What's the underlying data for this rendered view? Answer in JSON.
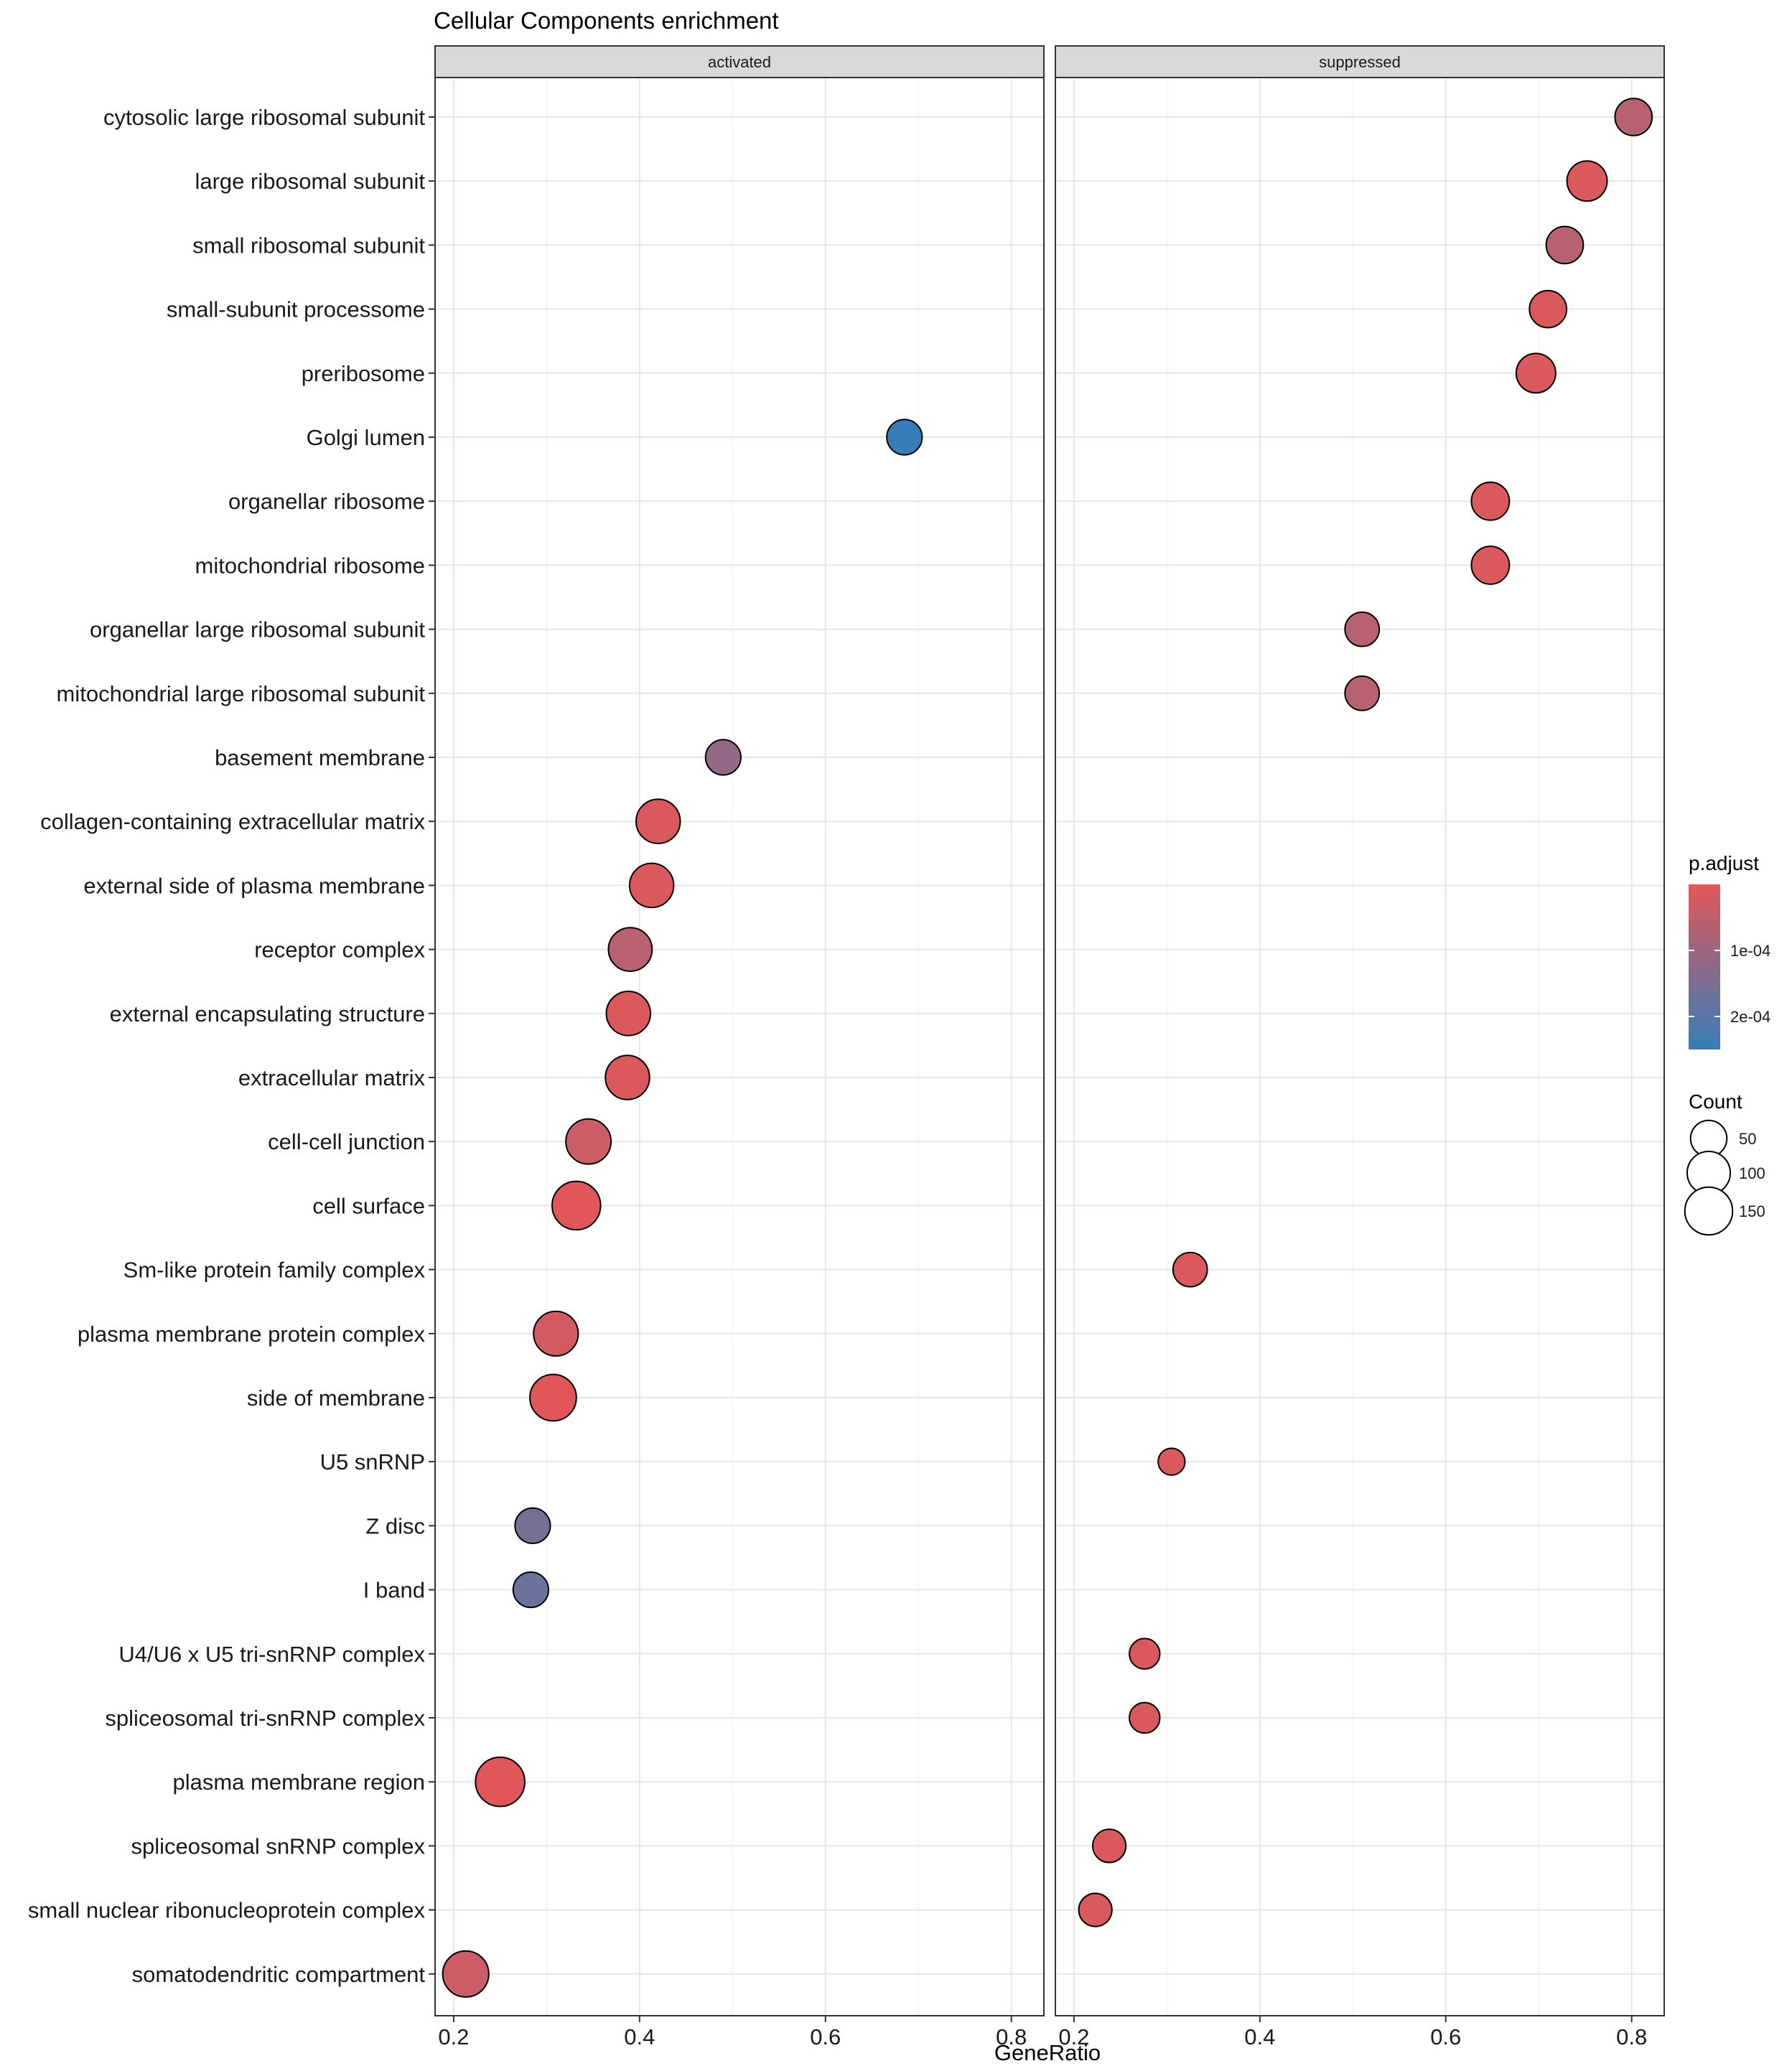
{
  "chart_data": {
    "type": "scatter",
    "title": "Cellular Components enrichment",
    "xlabel": "GeneRatio",
    "ylabel": "",
    "xlim": [
      0.18,
      0.835
    ],
    "xticks": [
      0.2,
      0.4,
      0.6,
      0.8
    ],
    "xtick_labels": [
      "0.2",
      "0.4",
      "0.6",
      "0.8"
    ],
    "grid": true,
    "facets": [
      "activated",
      "suppressed"
    ],
    "categories": [
      "cytosolic large ribosomal subunit",
      "large ribosomal subunit",
      "small ribosomal subunit",
      "small-subunit processome",
      "preribosome",
      "Golgi lumen",
      "organellar ribosome",
      "mitochondrial ribosome",
      "organellar large ribosomal subunit",
      "mitochondrial large ribosomal subunit",
      "basement membrane",
      "collagen-containing extracellular matrix",
      "external side of plasma membrane",
      "receptor complex",
      "external encapsulating structure",
      "extracellular matrix",
      "cell-cell junction",
      "cell surface",
      "Sm-like protein family complex",
      "plasma membrane protein complex",
      "side of membrane",
      "U5 snRNP",
      "Z disc",
      "I band",
      "U4/U6 x U5 tri-snRNP complex",
      "spliceosomal tri-snRNP complex",
      "plasma membrane region",
      "spliceosomal snRNP complex",
      "small nuclear ribonucleoprotein complex",
      "somatodendritic compartment"
    ],
    "points": [
      {
        "facet": "activated",
        "term": "Golgi lumen",
        "x": 0.685,
        "count": 45,
        "p_adjust": 0.00025
      },
      {
        "facet": "activated",
        "term": "basement membrane",
        "x": 0.49,
        "count": 45,
        "p_adjust": 0.00012
      },
      {
        "facet": "activated",
        "term": "collagen-containing extracellular matrix",
        "x": 0.42,
        "count": 110,
        "p_adjust": 2e-05
      },
      {
        "facet": "activated",
        "term": "external side of plasma membrane",
        "x": 0.413,
        "count": 110,
        "p_adjust": 2e-05
      },
      {
        "facet": "activated",
        "term": "receptor complex",
        "x": 0.39,
        "count": 105,
        "p_adjust": 7e-05
      },
      {
        "facet": "activated",
        "term": "external encapsulating structure",
        "x": 0.388,
        "count": 110,
        "p_adjust": 2e-05
      },
      {
        "facet": "activated",
        "term": "extracellular matrix",
        "x": 0.387,
        "count": 110,
        "p_adjust": 2e-05
      },
      {
        "facet": "activated",
        "term": "cell-cell junction",
        "x": 0.345,
        "count": 120,
        "p_adjust": 4e-05
      },
      {
        "facet": "activated",
        "term": "cell surface",
        "x": 0.332,
        "count": 160,
        "p_adjust": 1e-05
      },
      {
        "facet": "activated",
        "term": "plasma membrane protein complex",
        "x": 0.31,
        "count": 115,
        "p_adjust": 3e-05
      },
      {
        "facet": "activated",
        "term": "side of membrane",
        "x": 0.307,
        "count": 135,
        "p_adjust": 1e-05
      },
      {
        "facet": "activated",
        "term": "Z disc",
        "x": 0.285,
        "count": 45,
        "p_adjust": 0.00016
      },
      {
        "facet": "activated",
        "term": "I band",
        "x": 0.283,
        "count": 45,
        "p_adjust": 0.00018
      },
      {
        "facet": "activated",
        "term": "plasma membrane region",
        "x": 0.25,
        "count": 170,
        "p_adjust": 1e-05
      },
      {
        "facet": "activated",
        "term": "somatodendritic compartment",
        "x": 0.213,
        "count": 130,
        "p_adjust": 4e-05
      },
      {
        "facet": "suppressed",
        "term": "cytosolic large ribosomal subunit",
        "x": 0.802,
        "count": 55,
        "p_adjust": 7e-05
      },
      {
        "facet": "suppressed",
        "term": "large ribosomal subunit",
        "x": 0.752,
        "count": 75,
        "p_adjust": 2e-05
      },
      {
        "facet": "suppressed",
        "term": "small ribosomal subunit",
        "x": 0.728,
        "count": 55,
        "p_adjust": 7e-05
      },
      {
        "facet": "suppressed",
        "term": "small-subunit processome",
        "x": 0.71,
        "count": 55,
        "p_adjust": 2e-05
      },
      {
        "facet": "suppressed",
        "term": "preribosome",
        "x": 0.697,
        "count": 70,
        "p_adjust": 2e-05
      },
      {
        "facet": "suppressed",
        "term": "organellar ribosome",
        "x": 0.648,
        "count": 60,
        "p_adjust": 2e-05
      },
      {
        "facet": "suppressed",
        "term": "mitochondrial ribosome",
        "x": 0.648,
        "count": 60,
        "p_adjust": 2e-05
      },
      {
        "facet": "suppressed",
        "term": "organellar large ribosomal subunit",
        "x": 0.51,
        "count": 40,
        "p_adjust": 7e-05
      },
      {
        "facet": "suppressed",
        "term": "mitochondrial large ribosomal subunit",
        "x": 0.51,
        "count": 40,
        "p_adjust": 7e-05
      },
      {
        "facet": "suppressed",
        "term": "Sm-like protein family complex",
        "x": 0.325,
        "count": 40,
        "p_adjust": 2e-05
      },
      {
        "facet": "suppressed",
        "term": "U5 snRNP",
        "x": 0.305,
        "count": 15,
        "p_adjust": 2e-05
      },
      {
        "facet": "suppressed",
        "term": "U4/U6 x U5 tri-snRNP complex",
        "x": 0.276,
        "count": 25,
        "p_adjust": 2e-05
      },
      {
        "facet": "suppressed",
        "term": "spliceosomal tri-snRNP complex",
        "x": 0.276,
        "count": 25,
        "p_adjust": 2e-05
      },
      {
        "facet": "suppressed",
        "term": "spliceosomal snRNP complex",
        "x": 0.238,
        "count": 35,
        "p_adjust": 2e-05
      },
      {
        "facet": "suppressed",
        "term": "small nuclear ribonucleoprotein complex",
        "x": 0.223,
        "count": 35,
        "p_adjust": 2e-05
      }
    ],
    "legend": {
      "color": {
        "title": "p.adjust",
        "range": [
          1e-05,
          0.00025
        ],
        "ticks": [
          0.0001,
          0.0002
        ],
        "tick_labels": [
          "1e-04",
          "2e-04"
        ],
        "low_color": "#E15759",
        "high_color": "#377EB8"
      },
      "size": {
        "title": "Count",
        "values": [
          50,
          100,
          150
        ],
        "labels": [
          "50",
          "100",
          "150"
        ]
      },
      "placement": "right"
    }
  }
}
